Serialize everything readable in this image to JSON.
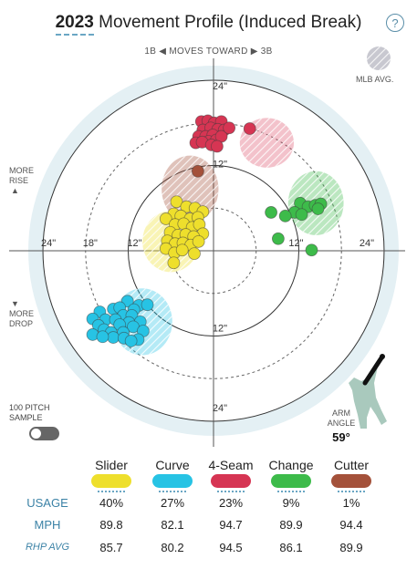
{
  "header": {
    "year": "2023",
    "title": " Movement Profile (Induced Break)",
    "help_label": "?"
  },
  "direction": {
    "left": "1B",
    "middle": "MOVES TOWARD",
    "right": "3B"
  },
  "legend": {
    "mlb_avg": "MLB AVG."
  },
  "side_labels": {
    "rise": [
      "MORE",
      "RISE"
    ],
    "drop": [
      "MORE",
      "DROP"
    ]
  },
  "sample": {
    "label": [
      "100 PITCH",
      "SAMPLE"
    ],
    "enabled": false
  },
  "arm_angle": {
    "label": [
      "ARM",
      "ANGLE"
    ],
    "value": "59°"
  },
  "colors": {
    "slider": "#eedf2c",
    "curve": "#27c3e4",
    "fourseam": "#d63553",
    "change": "#3dbb4a",
    "cutter": "#a4513a"
  },
  "chart_data": {
    "type": "scatter",
    "x_unit": "inches horizontal break",
    "y_unit": "inches induced vertical break",
    "rings": [
      12,
      18,
      24
    ],
    "axis_labels": {
      "x_left": [
        "24\"",
        "18\"",
        "12\""
      ],
      "x_right": [
        "12\"",
        "24\""
      ],
      "y_top": [
        "24\"",
        "12\""
      ],
      "y_bottom": [
        "12\"",
        "24\""
      ]
    },
    "mlb_avg": [
      {
        "pitch": "fourseam",
        "x": 7.5,
        "y": 15.2,
        "rx": 3.8,
        "ry": 3.5
      },
      {
        "pitch": "change",
        "x": 14.4,
        "y": 6.7,
        "rx": 3.9,
        "ry": 4.5
      },
      {
        "pitch": "cutter",
        "x": -3.3,
        "y": 8.7,
        "rx": 4.0,
        "ry": 4.7
      },
      {
        "pitch": "slider",
        "x": -6.0,
        "y": 1.3,
        "rx": 4.0,
        "ry": 4.3
      },
      {
        "pitch": "curve",
        "x": -10.0,
        "y": -10.0,
        "rx": 4.2,
        "ry": 4.7
      }
    ],
    "series": [
      {
        "pitch": "fourseam",
        "points": [
          [
            -1.7,
            18.2
          ],
          [
            -0.8,
            18.3
          ],
          [
            0.1,
            18.0
          ],
          [
            1.1,
            18.2
          ],
          [
            -1.5,
            17.0
          ],
          [
            -0.4,
            17.3
          ],
          [
            0.6,
            17.1
          ],
          [
            1.5,
            17.0
          ],
          [
            -2.1,
            16.1
          ],
          [
            -1.1,
            16.1
          ],
          [
            -0.1,
            16.3
          ],
          [
            -0.7,
            15.4
          ],
          [
            0.4,
            15.6
          ],
          [
            1.1,
            16.1
          ],
          [
            -2.5,
            15.2
          ],
          [
            -1.6,
            15.3
          ],
          [
            -0.3,
            14.9
          ],
          [
            0.5,
            14.7
          ],
          [
            2.2,
            17.3
          ],
          [
            5.1,
            17.2
          ]
        ]
      },
      {
        "pitch": "cutter",
        "points": [
          [
            -2.2,
            11.2
          ]
        ]
      },
      {
        "pitch": "change",
        "points": [
          [
            12.2,
            6.7
          ],
          [
            13.3,
            6.2
          ],
          [
            14.3,
            6.4
          ],
          [
            15.1,
            6.6
          ],
          [
            11.4,
            5.4
          ],
          [
            12.4,
            5.1
          ],
          [
            14.7,
            5.9
          ],
          [
            8.1,
            5.4
          ],
          [
            10.1,
            4.9
          ],
          [
            9.1,
            1.7
          ],
          [
            13.8,
            0.1
          ]
        ]
      },
      {
        "pitch": "slider",
        "points": [
          [
            -5.2,
            6.9
          ],
          [
            -3.8,
            6.2
          ],
          [
            -2.6,
            6.0
          ],
          [
            -1.5,
            5.5
          ],
          [
            -5.6,
            5.2
          ],
          [
            -4.6,
            4.9
          ],
          [
            -3.3,
            4.5
          ],
          [
            -2.2,
            4.7
          ],
          [
            -6.7,
            4.5
          ],
          [
            -5.4,
            3.7
          ],
          [
            -4.2,
            3.8
          ],
          [
            -3.0,
            3.3
          ],
          [
            -2.0,
            3.7
          ],
          [
            -1.5,
            2.4
          ],
          [
            -6.1,
            2.6
          ],
          [
            -5.0,
            2.2
          ],
          [
            -3.9,
            2.3
          ],
          [
            -2.8,
            2.0
          ],
          [
            -6.5,
            1.4
          ],
          [
            -5.4,
            1.0
          ],
          [
            -4.3,
            1.1
          ],
          [
            -3.2,
            0.8
          ],
          [
            -2.1,
            1.3
          ],
          [
            -6.7,
            0.3
          ],
          [
            -5.5,
            -0.3
          ],
          [
            -4.4,
            0.1
          ],
          [
            -2.7,
            -0.4
          ],
          [
            -5.6,
            -1.7
          ]
        ]
      },
      {
        "pitch": "curve",
        "points": [
          [
            -12.1,
            -7.1
          ],
          [
            -10.5,
            -7.7
          ],
          [
            -9.3,
            -7.6
          ],
          [
            -14.1,
            -8.2
          ],
          [
            -13.2,
            -8.0
          ],
          [
            -11.2,
            -8.3
          ],
          [
            -16.0,
            -8.6
          ],
          [
            -12.7,
            -9.1
          ],
          [
            -11.5,
            -9.1
          ],
          [
            -17.0,
            -9.6
          ],
          [
            -15.2,
            -9.7
          ],
          [
            -13.8,
            -9.7
          ],
          [
            -11.9,
            -10.1
          ],
          [
            -10.3,
            -10.0
          ],
          [
            -16.2,
            -10.5
          ],
          [
            -13.2,
            -10.4
          ],
          [
            -11.3,
            -10.7
          ],
          [
            -15.4,
            -11.1
          ],
          [
            -14.4,
            -11.5
          ],
          [
            -12.7,
            -11.5
          ],
          [
            -9.9,
            -11.3
          ],
          [
            -17.0,
            -11.8
          ],
          [
            -14.1,
            -12.2
          ],
          [
            -12.6,
            -12.3
          ],
          [
            -10.6,
            -12.5
          ],
          [
            -15.6,
            -12.1
          ],
          [
            -11.6,
            -12.7
          ]
        ]
      }
    ]
  },
  "table": {
    "columns": [
      {
        "key": "slider",
        "name": "Slider",
        "usage": "40%",
        "mph": "89.8",
        "rhp_avg": "85.7"
      },
      {
        "key": "curve",
        "name": "Curve",
        "usage": "27%",
        "mph": "82.1",
        "rhp_avg": "80.2"
      },
      {
        "key": "fourseam",
        "name": "4-Seam",
        "usage": "23%",
        "mph": "94.7",
        "rhp_avg": "94.5"
      },
      {
        "key": "change",
        "name": "Change",
        "usage": "9%",
        "mph": "89.9",
        "rhp_avg": "86.1"
      },
      {
        "key": "cutter",
        "name": "Cutter",
        "usage": "1%",
        "mph": "94.4",
        "rhp_avg": "89.9"
      }
    ],
    "row_labels": {
      "usage": "USAGE",
      "mph": "MPH",
      "rhp_avg": "RHP AVG"
    }
  }
}
